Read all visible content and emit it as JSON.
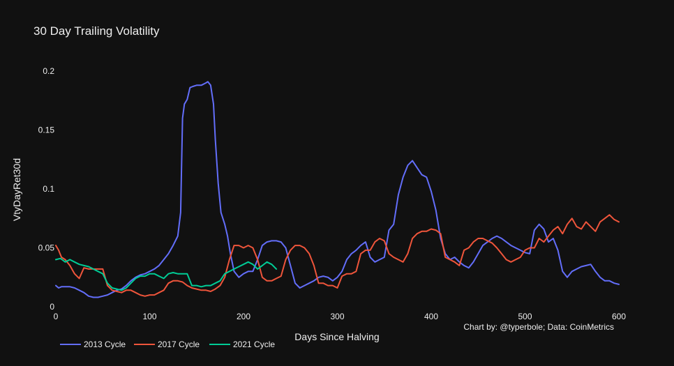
{
  "chart_data": {
    "type": "line",
    "title": "30 Day Trailing Volatility",
    "xlabel": "Days Since Halving",
    "ylabel": "VtyDayRet30d",
    "xlim": [
      0,
      600
    ],
    "ylim": [
      0,
      0.2
    ],
    "x_ticks": [
      0,
      100,
      200,
      300,
      400,
      500,
      600
    ],
    "x_tick_labels": [
      "0",
      "100",
      "200",
      "300",
      "400",
      "500",
      "600"
    ],
    "y_ticks": [
      0,
      0.05,
      0.1,
      0.15,
      0.2
    ],
    "y_tick_labels": [
      "0",
      "0.05",
      "0.1",
      "0.15",
      "0.2"
    ],
    "grid": false,
    "legend_position": "bottom-left",
    "annotation": "Chart by: @typerbole; Data: CoinMetrics",
    "series": [
      {
        "name": "2013 Cycle",
        "color": "#636efa",
        "x": [
          0,
          3,
          6,
          10,
          15,
          20,
          25,
          30,
          35,
          40,
          45,
          50,
          55,
          60,
          65,
          70,
          75,
          80,
          85,
          90,
          95,
          100,
          105,
          110,
          115,
          120,
          125,
          130,
          133,
          135,
          137,
          140,
          143,
          146,
          150,
          155,
          160,
          162,
          165,
          168,
          170,
          173,
          176,
          180,
          183,
          186,
          190,
          195,
          200,
          205,
          210,
          215,
          220,
          225,
          230,
          235,
          240,
          245,
          250,
          255,
          260,
          265,
          270,
          275,
          280,
          285,
          290,
          295,
          300,
          305,
          310,
          315,
          320,
          325,
          330,
          335,
          340,
          345,
          350,
          355,
          360,
          365,
          370,
          375,
          380,
          385,
          390,
          395,
          400,
          405,
          410,
          415,
          420,
          425,
          430,
          435,
          440,
          445,
          450,
          455,
          460,
          465,
          470,
          475,
          480,
          485,
          490,
          495,
          500,
          505,
          510,
          515,
          520,
          525,
          530,
          535,
          540,
          545,
          550,
          555,
          560,
          565,
          570,
          575,
          580,
          585,
          590,
          595,
          600
        ],
        "y": [
          0.018,
          0.016,
          0.017,
          0.017,
          0.017,
          0.016,
          0.014,
          0.012,
          0.009,
          0.008,
          0.008,
          0.009,
          0.01,
          0.012,
          0.014,
          0.015,
          0.018,
          0.022,
          0.025,
          0.027,
          0.028,
          0.03,
          0.032,
          0.035,
          0.04,
          0.045,
          0.052,
          0.06,
          0.08,
          0.16,
          0.172,
          0.176,
          0.186,
          0.187,
          0.188,
          0.188,
          0.19,
          0.191,
          0.188,
          0.172,
          0.142,
          0.105,
          0.08,
          0.07,
          0.06,
          0.045,
          0.03,
          0.025,
          0.028,
          0.03,
          0.03,
          0.04,
          0.052,
          0.055,
          0.056,
          0.056,
          0.055,
          0.05,
          0.035,
          0.02,
          0.016,
          0.018,
          0.02,
          0.022,
          0.025,
          0.026,
          0.025,
          0.022,
          0.025,
          0.03,
          0.04,
          0.045,
          0.048,
          0.052,
          0.055,
          0.042,
          0.038,
          0.04,
          0.042,
          0.065,
          0.07,
          0.095,
          0.11,
          0.12,
          0.124,
          0.118,
          0.112,
          0.11,
          0.098,
          0.082,
          0.058,
          0.045,
          0.04,
          0.042,
          0.038,
          0.035,
          0.033,
          0.038,
          0.045,
          0.052,
          0.055,
          0.058,
          0.06,
          0.058,
          0.055,
          0.052,
          0.05,
          0.048,
          0.046,
          0.045,
          0.065,
          0.07,
          0.066,
          0.055,
          0.058,
          0.048,
          0.03,
          0.025,
          0.03,
          0.032,
          0.034,
          0.035,
          0.036,
          0.03,
          0.025,
          0.022,
          0.022,
          0.02,
          0.019
        ]
      },
      {
        "name": "2017 Cycle",
        "color": "#ef553b",
        "x": [
          0,
          3,
          6,
          10,
          15,
          20,
          25,
          30,
          35,
          40,
          45,
          50,
          55,
          60,
          65,
          70,
          75,
          80,
          85,
          90,
          95,
          100,
          105,
          110,
          115,
          120,
          125,
          130,
          135,
          140,
          145,
          150,
          155,
          160,
          165,
          170,
          175,
          180,
          185,
          190,
          195,
          200,
          205,
          210,
          215,
          220,
          225,
          230,
          235,
          240,
          245,
          250,
          255,
          260,
          265,
          270,
          275,
          280,
          285,
          290,
          295,
          300,
          305,
          310,
          315,
          320,
          325,
          330,
          335,
          340,
          345,
          350,
          355,
          360,
          365,
          370,
          375,
          380,
          385,
          390,
          395,
          400,
          405,
          410,
          415,
          420,
          425,
          430,
          435,
          440,
          445,
          450,
          455,
          460,
          465,
          470,
          475,
          480,
          485,
          490,
          495,
          500,
          505,
          510,
          515,
          520,
          525,
          530,
          535,
          540,
          545,
          550,
          555,
          560,
          565,
          570,
          575,
          580,
          585,
          590,
          595,
          600
        ],
        "y": [
          0.052,
          0.048,
          0.042,
          0.04,
          0.035,
          0.028,
          0.024,
          0.033,
          0.032,
          0.032,
          0.032,
          0.032,
          0.018,
          0.014,
          0.013,
          0.012,
          0.014,
          0.014,
          0.012,
          0.01,
          0.009,
          0.01,
          0.01,
          0.012,
          0.014,
          0.02,
          0.022,
          0.022,
          0.021,
          0.018,
          0.016,
          0.015,
          0.014,
          0.014,
          0.013,
          0.015,
          0.018,
          0.025,
          0.04,
          0.052,
          0.052,
          0.05,
          0.052,
          0.05,
          0.04,
          0.025,
          0.022,
          0.022,
          0.024,
          0.026,
          0.04,
          0.048,
          0.052,
          0.052,
          0.05,
          0.045,
          0.035,
          0.02,
          0.02,
          0.018,
          0.018,
          0.016,
          0.026,
          0.028,
          0.028,
          0.03,
          0.045,
          0.048,
          0.048,
          0.055,
          0.058,
          0.056,
          0.045,
          0.042,
          0.04,
          0.038,
          0.045,
          0.058,
          0.062,
          0.064,
          0.064,
          0.066,
          0.065,
          0.062,
          0.042,
          0.04,
          0.038,
          0.035,
          0.048,
          0.05,
          0.055,
          0.058,
          0.058,
          0.056,
          0.054,
          0.05,
          0.045,
          0.04,
          0.038,
          0.04,
          0.042,
          0.048,
          0.05,
          0.05,
          0.058,
          0.055,
          0.06,
          0.065,
          0.068,
          0.062,
          0.07,
          0.075,
          0.068,
          0.066,
          0.072,
          0.068,
          0.064,
          0.072,
          0.075,
          0.078,
          0.074,
          0.072
        ]
      },
      {
        "name": "2021 Cycle",
        "color": "#00cc96",
        "x": [
          0,
          5,
          10,
          15,
          20,
          25,
          30,
          35,
          40,
          45,
          50,
          55,
          60,
          65,
          70,
          75,
          80,
          85,
          90,
          95,
          100,
          105,
          110,
          115,
          120,
          125,
          130,
          135,
          140,
          145,
          150,
          155,
          160,
          165,
          170,
          175,
          180,
          185,
          190,
          195,
          200,
          205,
          210,
          215,
          220,
          225,
          230,
          235
        ],
        "y": [
          0.04,
          0.041,
          0.038,
          0.04,
          0.038,
          0.036,
          0.035,
          0.034,
          0.032,
          0.03,
          0.028,
          0.02,
          0.016,
          0.015,
          0.014,
          0.016,
          0.02,
          0.024,
          0.026,
          0.026,
          0.028,
          0.028,
          0.026,
          0.024,
          0.028,
          0.029,
          0.028,
          0.028,
          0.028,
          0.018,
          0.018,
          0.017,
          0.018,
          0.018,
          0.02,
          0.022,
          0.028,
          0.03,
          0.032,
          0.034,
          0.036,
          0.038,
          0.036,
          0.032,
          0.035,
          0.038,
          0.036,
          0.032
        ]
      }
    ]
  }
}
